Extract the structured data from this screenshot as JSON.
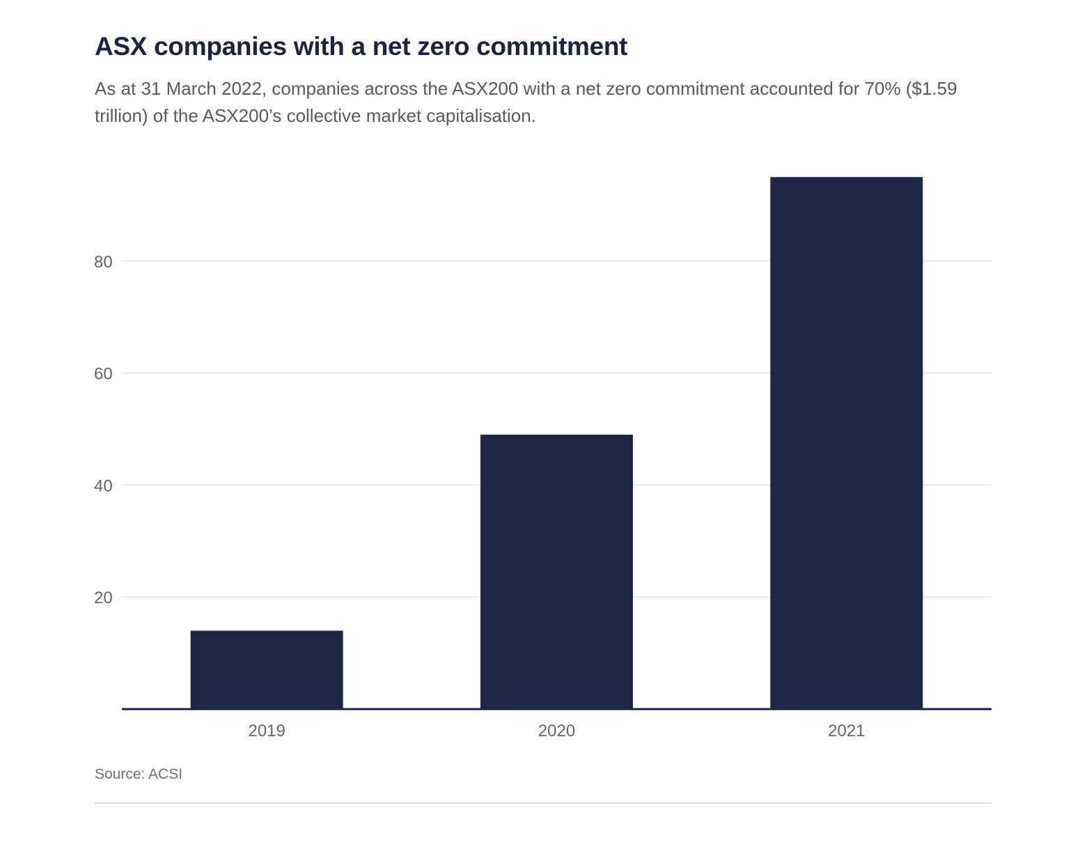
{
  "chart_data": {
    "type": "bar",
    "title": "ASX companies with a net zero commitment",
    "subtitle": "As at 31 March 2022, companies across the ASX200 with a net zero commitment accounted for 70% ($1.59 trillion) of the ASX200’s collective market capitalisation.",
    "categories": [
      "2019",
      "2020",
      "2021"
    ],
    "values": [
      14,
      49,
      95
    ],
    "yticks": [
      "20",
      "40",
      "60",
      "80"
    ],
    "ylim": [
      0,
      100
    ],
    "xlabel": "",
    "ylabel": "",
    "grid": true,
    "legend": "none",
    "source": "Source: ACSI",
    "colors": {
      "bar": "#1e2545",
      "axis": "#1b2340",
      "grid": "#e3e3e3"
    }
  }
}
